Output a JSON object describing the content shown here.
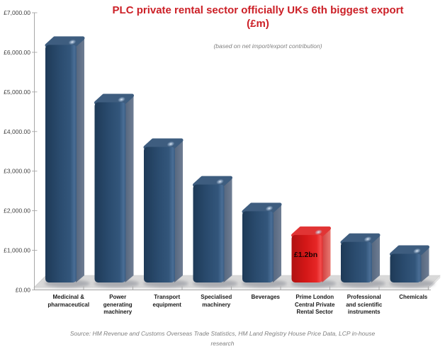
{
  "header": {
    "title_line1": "PLC private rental sector officially UKs 6th biggest export",
    "title_line2": "(£m)",
    "subtitle": "(based on net import/export contribution)"
  },
  "source": {
    "line1": "Source: HM Revenue and Customs Overseas Trade Statistics, HM Land Registry House Price Data, LCP in-house",
    "line2": "research"
  },
  "colors": {
    "title": "#CC2027",
    "subtitle": "#808080",
    "axis_line": "#A6A6A6",
    "axis_text": "#404040",
    "category_text": "#1A1A1A",
    "bar_navy": "#2A4B6E",
    "bar_red": "#DD1D1D",
    "floor": "#D9D9D9",
    "source_text": "#808080",
    "data_label_text": "#1C0202"
  },
  "chart_data": {
    "type": "bar",
    "variant": "3d-column",
    "title": "PLC private rental sector officially UKs 6th biggest export (£m)",
    "subtitle": "(based on net import/export contribution)",
    "unit": "£m",
    "categories": [
      "Medicinal & pharmaceutical",
      "Power generating machinery",
      "Transport equipment",
      "Specialised machinery",
      "Beverages",
      "Prime London Central Private Rental Sector",
      "Professional and scientific instruments",
      "Chemicals"
    ],
    "category_label_lines": [
      [
        "Medicinal &",
        "pharmaceutical"
      ],
      [
        "Power",
        "generating",
        "machinery"
      ],
      [
        "Transport",
        "equipment"
      ],
      [
        "Specialised",
        "machinery"
      ],
      [
        "Beverages"
      ],
      [
        "Prime London",
        "Central Private",
        "Rental Sector"
      ],
      [
        "Professional",
        "and scientific",
        "instruments"
      ],
      [
        "Chemicals"
      ]
    ],
    "values": [
      6000,
      4550,
      3425,
      2475,
      1800,
      1200,
      1025,
      725
    ],
    "highlight_index": 5,
    "data_labels": {
      "5": "£1.2bn"
    },
    "y_ticks": [
      "£0.00",
      "£1,000.00",
      "£2,000.00",
      "£3,000.00",
      "£4,000.00",
      "£5,000.00",
      "£6,000.00",
      "£7,000.00"
    ],
    "ylim": [
      0,
      7000
    ],
    "ytick_step": 1000,
    "grid": "off",
    "legend": "none"
  }
}
